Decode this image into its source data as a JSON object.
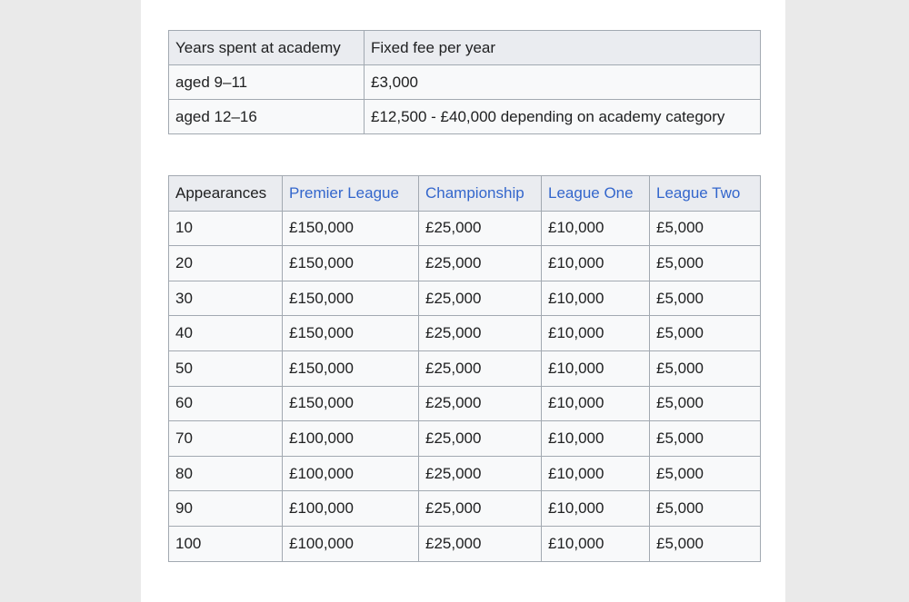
{
  "fees_table": {
    "headers": [
      "Years spent at academy",
      "Fixed fee per year"
    ],
    "rows": [
      [
        "aged 9–11",
        "£3,000"
      ],
      [
        "aged 12–16",
        "£12,500 - £40,000 depending on academy category"
      ]
    ]
  },
  "compensation_table": {
    "headers": [
      "Appearances",
      "Premier League",
      "Championship",
      "League One",
      "League Two"
    ],
    "link_color": "#3366cc",
    "rows": [
      [
        "10",
        "£150,000",
        "£25,000",
        "£10,000",
        "£5,000"
      ],
      [
        "20",
        "£150,000",
        "£25,000",
        "£10,000",
        "£5,000"
      ],
      [
        "30",
        "£150,000",
        "£25,000",
        "£10,000",
        "£5,000"
      ],
      [
        "40",
        "£150,000",
        "£25,000",
        "£10,000",
        "£5,000"
      ],
      [
        "50",
        "£150,000",
        "£25,000",
        "£10,000",
        "£5,000"
      ],
      [
        "60",
        "£150,000",
        "£25,000",
        "£10,000",
        "£5,000"
      ],
      [
        "70",
        "£100,000",
        "£25,000",
        "£10,000",
        "£5,000"
      ],
      [
        "80",
        "£100,000",
        "£25,000",
        "£10,000",
        "£5,000"
      ],
      [
        "90",
        "£100,000",
        "£25,000",
        "£10,000",
        "£5,000"
      ],
      [
        "100",
        "£100,000",
        "£25,000",
        "£10,000",
        "£5,000"
      ]
    ]
  }
}
